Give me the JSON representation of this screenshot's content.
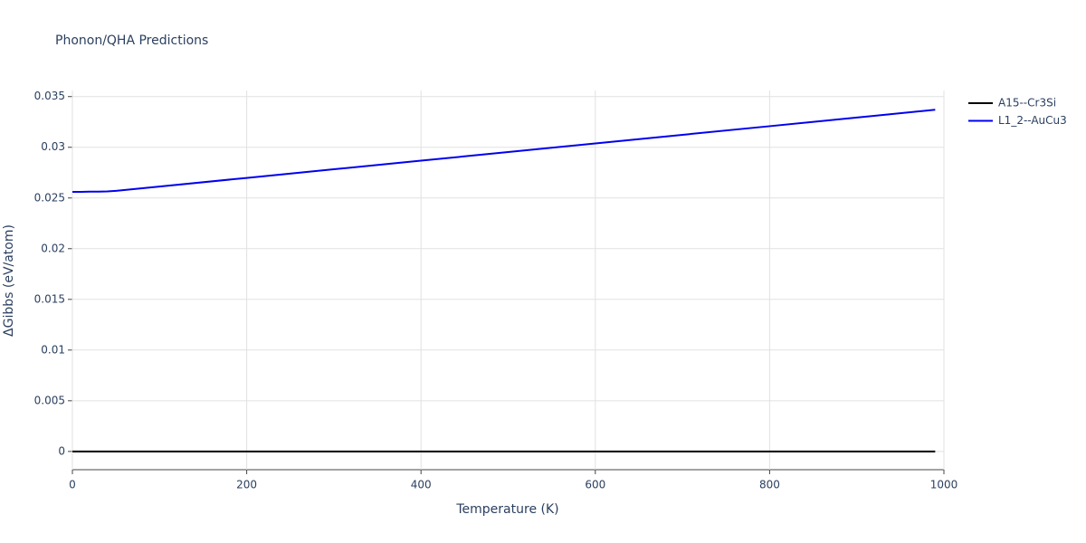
{
  "chart_data": {
    "type": "line",
    "title": "Phonon/QHA Predictions",
    "x_label": "Temperature (K)",
    "y_label": "ΔGibbs (eV/atom)",
    "x": [
      0,
      10,
      20,
      30,
      40,
      50,
      100,
      200,
      300,
      400,
      500,
      600,
      700,
      800,
      900,
      990
    ],
    "series": [
      {
        "name": "A15--Cr3Si",
        "color": "#000000",
        "values": [
          0,
          0,
          0,
          0,
          0,
          0,
          0,
          0,
          0,
          0,
          0,
          0,
          0,
          0,
          0,
          0
        ]
      },
      {
        "name": "L1_2--AuCu3",
        "color": "#0000ee",
        "values": [
          0.0256,
          0.0256,
          0.02562,
          0.02563,
          0.02565,
          0.0257,
          0.02613,
          0.02698,
          0.02783,
          0.02868,
          0.02953,
          0.03038,
          0.03123,
          0.03208,
          0.03293,
          0.0337
        ]
      }
    ],
    "xlim": [
      0,
      1000
    ],
    "xticks": [
      0,
      200,
      400,
      600,
      800,
      1000
    ],
    "ylim": [
      -0.0018,
      0.0356
    ],
    "yticks": [
      0,
      0.005,
      0.01,
      0.015,
      0.02,
      0.025,
      0.03,
      0.035
    ],
    "grid": true,
    "legend": "top-right"
  }
}
